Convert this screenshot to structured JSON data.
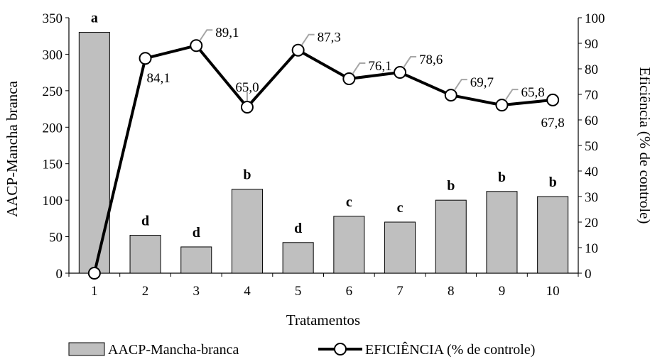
{
  "chart_data": {
    "type": "bar+line",
    "categories": [
      "1",
      "2",
      "3",
      "4",
      "5",
      "6",
      "7",
      "8",
      "9",
      "10"
    ],
    "xlabel": "Tratamentos",
    "ylabel_left": "AACP-Mancha branca",
    "ylabel_right": "Eficiência (% de controle)",
    "ylim_left": [
      0,
      350
    ],
    "yticks_left": [
      0,
      50,
      100,
      150,
      200,
      250,
      300,
      350
    ],
    "ylim_right": [
      0,
      100
    ],
    "yticks_right": [
      0,
      10,
      20,
      30,
      40,
      50,
      60,
      70,
      80,
      90,
      100
    ],
    "series": [
      {
        "name": "AACP-Mancha-branca",
        "kind": "bar",
        "axis": "left",
        "color": "#bfbfbf",
        "values": [
          330,
          52,
          36,
          115,
          42,
          78,
          70,
          100,
          112,
          105
        ],
        "significance": [
          "a",
          "d",
          "d",
          "b",
          "d",
          "c",
          "c",
          "b",
          "b",
          "b"
        ]
      },
      {
        "name": "EFICIÊNCIA (% de controle)",
        "kind": "line",
        "axis": "right",
        "color": "#000000",
        "values": [
          0,
          84.1,
          89.1,
          65.0,
          87.3,
          76.1,
          78.6,
          69.7,
          65.8,
          67.8
        ],
        "labels": [
          "",
          "84,1",
          "89,1",
          "65,0",
          "87,3",
          "76,1",
          "78,6",
          "69,7",
          "65,8",
          "67,8"
        ]
      }
    ],
    "legend": {
      "position": "bottom",
      "entries": [
        "AACP-Mancha-branca",
        "EFICIÊNCIA (% de controle)"
      ]
    }
  }
}
